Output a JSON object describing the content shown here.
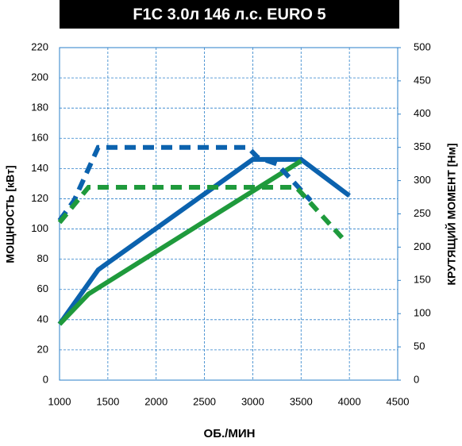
{
  "chart_data": {
    "type": "line",
    "title": "F1C 3.0л 146 л.с. EURO 5",
    "xlabel": "ОБ./МИН",
    "ylabel": "МОЩНОСТЬ [кВт]",
    "y2label": "КРУТЯЩИЙ МОМЕНТ [Нм]",
    "xlim": [
      1000,
      4500
    ],
    "xticks": [
      1000,
      1500,
      2000,
      2500,
      3000,
      3500,
      4000,
      4500
    ],
    "ylim": [
      0,
      220
    ],
    "yticks": [
      0,
      20,
      40,
      60,
      80,
      100,
      120,
      140,
      160,
      180,
      200,
      220
    ],
    "y2lim": [
      0,
      500
    ],
    "y2ticks": [
      0,
      50,
      100,
      150,
      200,
      250,
      300,
      350,
      400,
      450,
      500
    ],
    "grid": true,
    "grid_color": "#2a7fc9",
    "series": [
      {
        "color": "#0b62ae",
        "line_style": "solid",
        "x": [
          1000,
          1400,
          3000,
          3500,
          4000
        ],
        "values": [
          37,
          73,
          146,
          146,
          122
        ]
      },
      {
        "color": "#1f9a3c",
        "line_style": "solid",
        "x": [
          1000,
          1300,
          3500
        ],
        "values": [
          37,
          57,
          145
        ]
      },
      {
        "color": "#0b62ae",
        "line_style": "dashed",
        "axis": "y2",
        "x": [
          1000,
          1150,
          1400,
          2950,
          3050,
          3250,
          3600
        ],
        "values": [
          240,
          270,
          350,
          350,
          335,
          325,
          270
        ]
      },
      {
        "color": "#1f9a3c",
        "line_style": "dashed",
        "axis": "y2",
        "x": [
          1000,
          1300,
          3450,
          3700,
          3950
        ],
        "values": [
          237,
          290,
          290,
          250,
          210
        ]
      }
    ]
  }
}
